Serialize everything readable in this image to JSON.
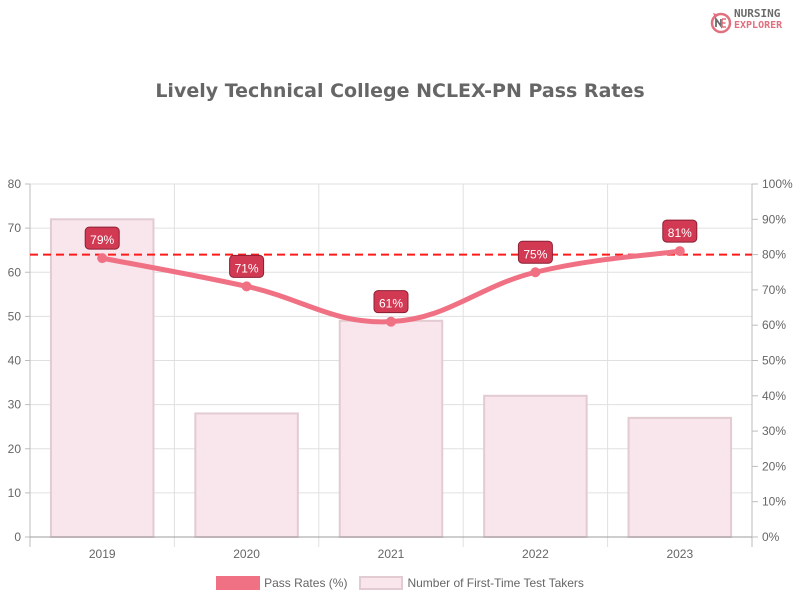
{
  "brand": {
    "line1": "NURSING",
    "line2": "EXPLORER",
    "icon": "nursing-explorer-logo-icon",
    "icon_letters": "NE"
  },
  "colors": {
    "line": "#f07184",
    "line_label_bg": "#d23a54",
    "bar_fill": "#f8e6ec",
    "bar_border": "#e2cbd1",
    "threshold": "#ff1a1a",
    "grid": "#e0e0e0",
    "axis": "#bdbdbd"
  },
  "chart_data": {
    "type": "bar+line",
    "title": "Lively Technical College NCLEX-PN Pass Rates",
    "categories": [
      "2019",
      "2020",
      "2021",
      "2022",
      "2023"
    ],
    "series": [
      {
        "name": "Pass Rates (%)",
        "type": "line",
        "axis": "right",
        "values": [
          79,
          71,
          61,
          75,
          81
        ],
        "labels": [
          "79%",
          "71%",
          "61%",
          "75%",
          "81%"
        ]
      },
      {
        "name": "Number of First-Time Test Takers",
        "type": "bar",
        "axis": "left",
        "values": [
          72,
          28,
          49,
          32,
          27
        ]
      }
    ],
    "reference_line": {
      "axis": "right",
      "value": 80,
      "style": "dashed",
      "color": "#ff1a1a"
    },
    "y_left": {
      "min": 0,
      "max": 80,
      "ticks": [
        "0",
        "10",
        "20",
        "30",
        "40",
        "50",
        "60",
        "70",
        "80"
      ]
    },
    "y_right": {
      "min": 0,
      "max": 100,
      "ticks": [
        "0%",
        "10%",
        "20%",
        "30%",
        "40%",
        "50%",
        "60%",
        "70%",
        "80%",
        "90%",
        "100%"
      ]
    },
    "xlabel": "",
    "ylabel": "",
    "grid": true,
    "legend_position": "bottom"
  },
  "legend": {
    "items": [
      {
        "label": "Pass Rates (%)"
      },
      {
        "label": "Number of First-Time Test Takers"
      }
    ]
  }
}
